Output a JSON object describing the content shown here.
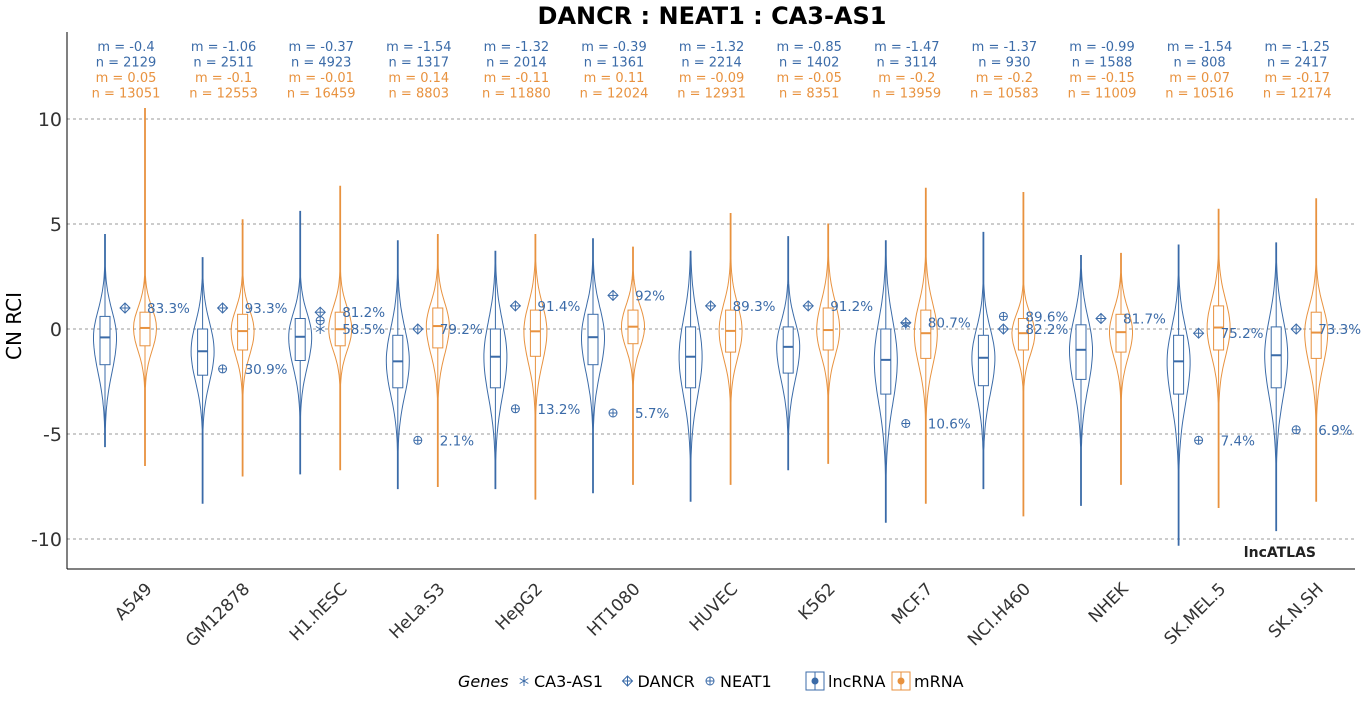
{
  "chart_data": {
    "type": "violin",
    "title": "DANCR : NEAT1 : CA3-AS1",
    "ylabel": "CN RCI",
    "xlabel": "",
    "ylim": [
      -11.5,
      13.5
    ],
    "yticks": [
      10,
      5,
      0,
      -5,
      -10
    ],
    "ytick_labels": [
      "10",
      "5",
      "0",
      "-5",
      "-10"
    ],
    "grid": "horizontal dashed",
    "watermark": "lncATLAS",
    "categories": [
      "A549",
      "GM12878",
      "H1.hESC",
      "HeLa.S3",
      "HepG2",
      "HT1080",
      "HUVEC",
      "K562",
      "MCF.7",
      "NCI.H460",
      "NHEK",
      "SK.MEL.5",
      "SK.N.SH"
    ],
    "series": [
      {
        "name": "lncRNA",
        "color": "#3b6ba8",
        "stats_m": [
          "m = -0.4",
          "m = -1.06",
          "m = -0.37",
          "m = -1.54",
          "m = -1.32",
          "m = -0.39",
          "m = -1.32",
          "m = -0.85",
          "m = -1.47",
          "m = -1.37",
          "m = -0.99",
          "m = -1.54",
          "m = -1.25"
        ],
        "stats_n": [
          "n = 2129",
          "n = 2511",
          "n = 4923",
          "n = 1317",
          "n = 2014",
          "n = 1361",
          "n = 2214",
          "n = 1402",
          "n = 3114",
          "n = 930",
          "n = 1588",
          "n = 808",
          "n = 2417"
        ],
        "median": [
          -0.4,
          -1.06,
          -0.37,
          -1.54,
          -1.32,
          -0.39,
          -1.32,
          -0.85,
          -1.47,
          -1.37,
          -0.99,
          -1.54,
          -1.25
        ],
        "q1": [
          -1.7,
          -2.2,
          -1.5,
          -2.8,
          -2.8,
          -1.7,
          -2.8,
          -2.1,
          -3.1,
          -2.7,
          -2.4,
          -3.1,
          -2.8
        ],
        "q3": [
          0.6,
          0.0,
          0.5,
          -0.3,
          0.0,
          0.7,
          0.1,
          0.1,
          0.0,
          -0.3,
          0.2,
          -0.3,
          0.1
        ],
        "min": [
          -5.6,
          -8.3,
          -6.9,
          -7.6,
          -7.6,
          -7.8,
          -8.2,
          -6.7,
          -9.2,
          -7.6,
          -8.4,
          -10.3,
          -9.6
        ],
        "max": [
          4.5,
          3.4,
          5.6,
          4.2,
          3.7,
          4.3,
          3.7,
          4.4,
          4.2,
          4.6,
          3.5,
          4.0,
          4.1
        ]
      },
      {
        "name": "mRNA",
        "color": "#e8923f",
        "stats_m": [
          "m = 0.05",
          "m = -0.1",
          "m = -0.01",
          "m = 0.14",
          "m = -0.11",
          "m = 0.11",
          "m = -0.09",
          "m = -0.05",
          "m = -0.2",
          "m = -0.2",
          "m = -0.15",
          "m = 0.07",
          "m = -0.17"
        ],
        "stats_n": [
          "n = 13051",
          "n = 12553",
          "n = 16459",
          "n = 8803",
          "n = 11880",
          "n = 12024",
          "n = 12931",
          "n = 8351",
          "n = 13959",
          "n = 10583",
          "n = 11009",
          "n = 10516",
          "n = 12174"
        ],
        "median": [
          0.05,
          -0.1,
          -0.01,
          0.14,
          -0.11,
          0.11,
          -0.09,
          -0.05,
          -0.2,
          -0.2,
          -0.15,
          0.07,
          -0.17
        ],
        "q1": [
          -0.8,
          -1.0,
          -0.8,
          -0.9,
          -1.3,
          -0.7,
          -1.1,
          -1.0,
          -1.4,
          -1.0,
          -1.1,
          -1.0,
          -1.4
        ],
        "q3": [
          0.8,
          0.7,
          0.8,
          1.0,
          0.9,
          0.9,
          0.9,
          1.0,
          0.9,
          0.5,
          0.7,
          1.1,
          0.8
        ],
        "min": [
          -6.5,
          -7.0,
          -6.7,
          -7.5,
          -8.1,
          -7.4,
          -7.4,
          -6.4,
          -8.3,
          -8.9,
          -7.4,
          -8.5,
          -8.2
        ],
        "max": [
          10.5,
          5.2,
          6.8,
          4.5,
          4.5,
          3.9,
          5.5,
          5.0,
          6.7,
          6.5,
          3.6,
          5.7,
          6.2
        ]
      }
    ],
    "genes": [
      {
        "name": "CA3-AS1",
        "symbol": "✳"
      },
      {
        "name": "DANCR",
        "symbol": "⊕"
      },
      {
        "name": "NEAT1",
        "symbol": "⊕"
      }
    ],
    "gene_points": [
      {
        "cat": 0,
        "points": [
          {
            "gene": "DANCR",
            "y": 1.0,
            "pct": "83.3%"
          }
        ]
      },
      {
        "cat": 1,
        "points": [
          {
            "gene": "DANCR",
            "y": 1.0,
            "pct": "93.3%"
          },
          {
            "gene": "NEAT1",
            "y": -1.9,
            "pct": "30.9%"
          }
        ]
      },
      {
        "cat": 2,
        "points": [
          {
            "gene": "DANCR",
            "y": 0.8,
            "pct": "81.2%"
          },
          {
            "gene": "NEAT1",
            "y": 0.4,
            "pct": ""
          },
          {
            "gene": "CA3-AS1",
            "y": 0.0,
            "pct": "58.5%"
          }
        ]
      },
      {
        "cat": 3,
        "points": [
          {
            "gene": "DANCR",
            "y": 0.0,
            "pct": "79.2%"
          },
          {
            "gene": "NEAT1",
            "y": -5.3,
            "pct": "2.1%"
          }
        ]
      },
      {
        "cat": 4,
        "points": [
          {
            "gene": "DANCR",
            "y": 1.1,
            "pct": "91.4%"
          },
          {
            "gene": "NEAT1",
            "y": -3.8,
            "pct": "13.2%"
          }
        ]
      },
      {
        "cat": 5,
        "points": [
          {
            "gene": "DANCR",
            "y": 1.6,
            "pct": "92%"
          },
          {
            "gene": "NEAT1",
            "y": -4.0,
            "pct": "5.7%"
          }
        ]
      },
      {
        "cat": 6,
        "points": [
          {
            "gene": "DANCR",
            "y": 1.1,
            "pct": "89.3%"
          }
        ]
      },
      {
        "cat": 7,
        "points": [
          {
            "gene": "DANCR",
            "y": 1.1,
            "pct": "91.2%"
          }
        ]
      },
      {
        "cat": 8,
        "points": [
          {
            "gene": "DANCR",
            "y": 0.3,
            "pct": "80.7%"
          },
          {
            "gene": "CA3-AS1",
            "y": 0.2,
            "pct": ""
          },
          {
            "gene": "NEAT1",
            "y": -4.5,
            "pct": "10.6%"
          }
        ]
      },
      {
        "cat": 9,
        "points": [
          {
            "gene": "NEAT1",
            "y": 0.6,
            "pct": "89.6%"
          },
          {
            "gene": "DANCR",
            "y": 0.0,
            "pct": "82.2%"
          }
        ]
      },
      {
        "cat": 10,
        "points": [
          {
            "gene": "DANCR",
            "y": 0.5,
            "pct": "81.7%"
          }
        ]
      },
      {
        "cat": 11,
        "points": [
          {
            "gene": "DANCR",
            "y": -0.2,
            "pct": "75.2%"
          },
          {
            "gene": "NEAT1",
            "y": -5.3,
            "pct": "7.4%"
          }
        ]
      },
      {
        "cat": 12,
        "points": [
          {
            "gene": "DANCR",
            "y": 0.0,
            "pct": "73.3%"
          },
          {
            "gene": "NEAT1",
            "y": -4.8,
            "pct": "6.9%"
          }
        ]
      }
    ],
    "legend": {
      "placement": "bottom",
      "genes_title": "Genes",
      "types": [
        "lncRNA",
        "mRNA"
      ]
    }
  }
}
